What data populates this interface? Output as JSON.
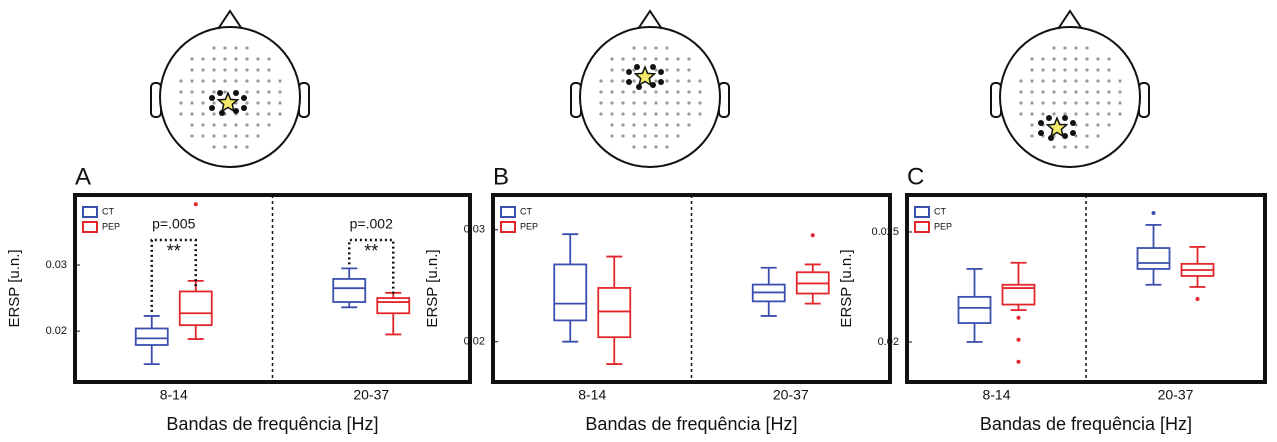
{
  "chart_data": [
    {
      "type": "box",
      "panel_label": "A",
      "xlabel": "Bandas de frequência [Hz]",
      "ylabel": "ERSP [u.n.]",
      "categories": [
        "8-14",
        "20-37"
      ],
      "ylim": [
        0.0123,
        0.0406
      ],
      "yticks": [
        0.02,
        0.03
      ],
      "series": [
        {
          "name": "CT",
          "color": "#3b4fae",
          "boxes": [
            {
              "min": 0.015,
              "q1": 0.0179,
              "median": 0.0189,
              "q3": 0.0204,
              "max": 0.0223,
              "outliers": []
            },
            {
              "min": 0.0236,
              "q1": 0.0244,
              "median": 0.0265,
              "q3": 0.0279,
              "max": 0.0295,
              "outliers": []
            }
          ]
        },
        {
          "name": "PEP",
          "color": "#e3262b",
          "boxes": [
            {
              "min": 0.0188,
              "q1": 0.0209,
              "median": 0.0227,
              "q3": 0.026,
              "max": 0.0276,
              "outliers": [
                0.0392
              ]
            },
            {
              "min": 0.0195,
              "q1": 0.0227,
              "median": 0.0244,
              "q3": 0.025,
              "max": 0.0258,
              "outliers": []
            }
          ]
        }
      ],
      "annotations": [
        {
          "p": "p=.005",
          "stars": "**"
        },
        {
          "p": "p=.002",
          "stars": "**"
        }
      ]
    },
    {
      "type": "box",
      "panel_label": "B",
      "xlabel": "Bandas de frequência [Hz]",
      "ylabel": "ERSP [u.n.]",
      "categories": [
        "8-14",
        "20-37"
      ],
      "ylim": [
        0.0164,
        0.0331
      ],
      "yticks": [
        0.02,
        0.03
      ],
      "series": [
        {
          "name": "CT",
          "color": "#3b4fae",
          "boxes": [
            {
              "min": 0.02,
              "q1": 0.0219,
              "median": 0.0234,
              "q3": 0.0269,
              "max": 0.0296,
              "outliers": []
            },
            {
              "min": 0.0223,
              "q1": 0.0236,
              "median": 0.0244,
              "q3": 0.0251,
              "max": 0.0266,
              "outliers": []
            }
          ]
        },
        {
          "name": "PEP",
          "color": "#e3262b",
          "boxes": [
            {
              "min": 0.018,
              "q1": 0.0204,
              "median": 0.0227,
              "q3": 0.0248,
              "max": 0.0276,
              "outliers": []
            },
            {
              "min": 0.0234,
              "q1": 0.0243,
              "median": 0.0252,
              "q3": 0.0262,
              "max": 0.0269,
              "outliers": [
                0.0295
              ]
            }
          ]
        }
      ]
    },
    {
      "type": "box",
      "panel_label": "C",
      "xlabel": "Bandas de frequência [Hz]",
      "ylabel": "ERSP [u.n.]",
      "categories": [
        "8-14",
        "20-37"
      ],
      "ylim": [
        0.01818,
        0.02668
      ],
      "yticks": [
        0.02,
        0.025
      ],
      "series": [
        {
          "name": "CT",
          "color": "#3b4fae",
          "boxes": [
            {
              "min": 0.02,
              "q1": 0.02086,
              "median": 0.02155,
              "q3": 0.02205,
              "max": 0.02332,
              "outliers": []
            },
            {
              "min": 0.0226,
              "q1": 0.02332,
              "median": 0.02359,
              "q3": 0.02427,
              "max": 0.02532,
              "outliers": [
                0.02586
              ]
            }
          ]
        },
        {
          "name": "PEP",
          "color": "#e3262b",
          "boxes": [
            {
              "min": 0.02145,
              "q1": 0.0217,
              "median": 0.02245,
              "q3": 0.0226,
              "max": 0.0236,
              "outliers": [
                0.0211,
                0.0201,
                0.0191
              ]
            },
            {
              "min": 0.0225,
              "q1": 0.023,
              "median": 0.02327,
              "q3": 0.02355,
              "max": 0.02432,
              "outliers": [
                0.02195
              ]
            }
          ]
        }
      ]
    }
  ]
}
